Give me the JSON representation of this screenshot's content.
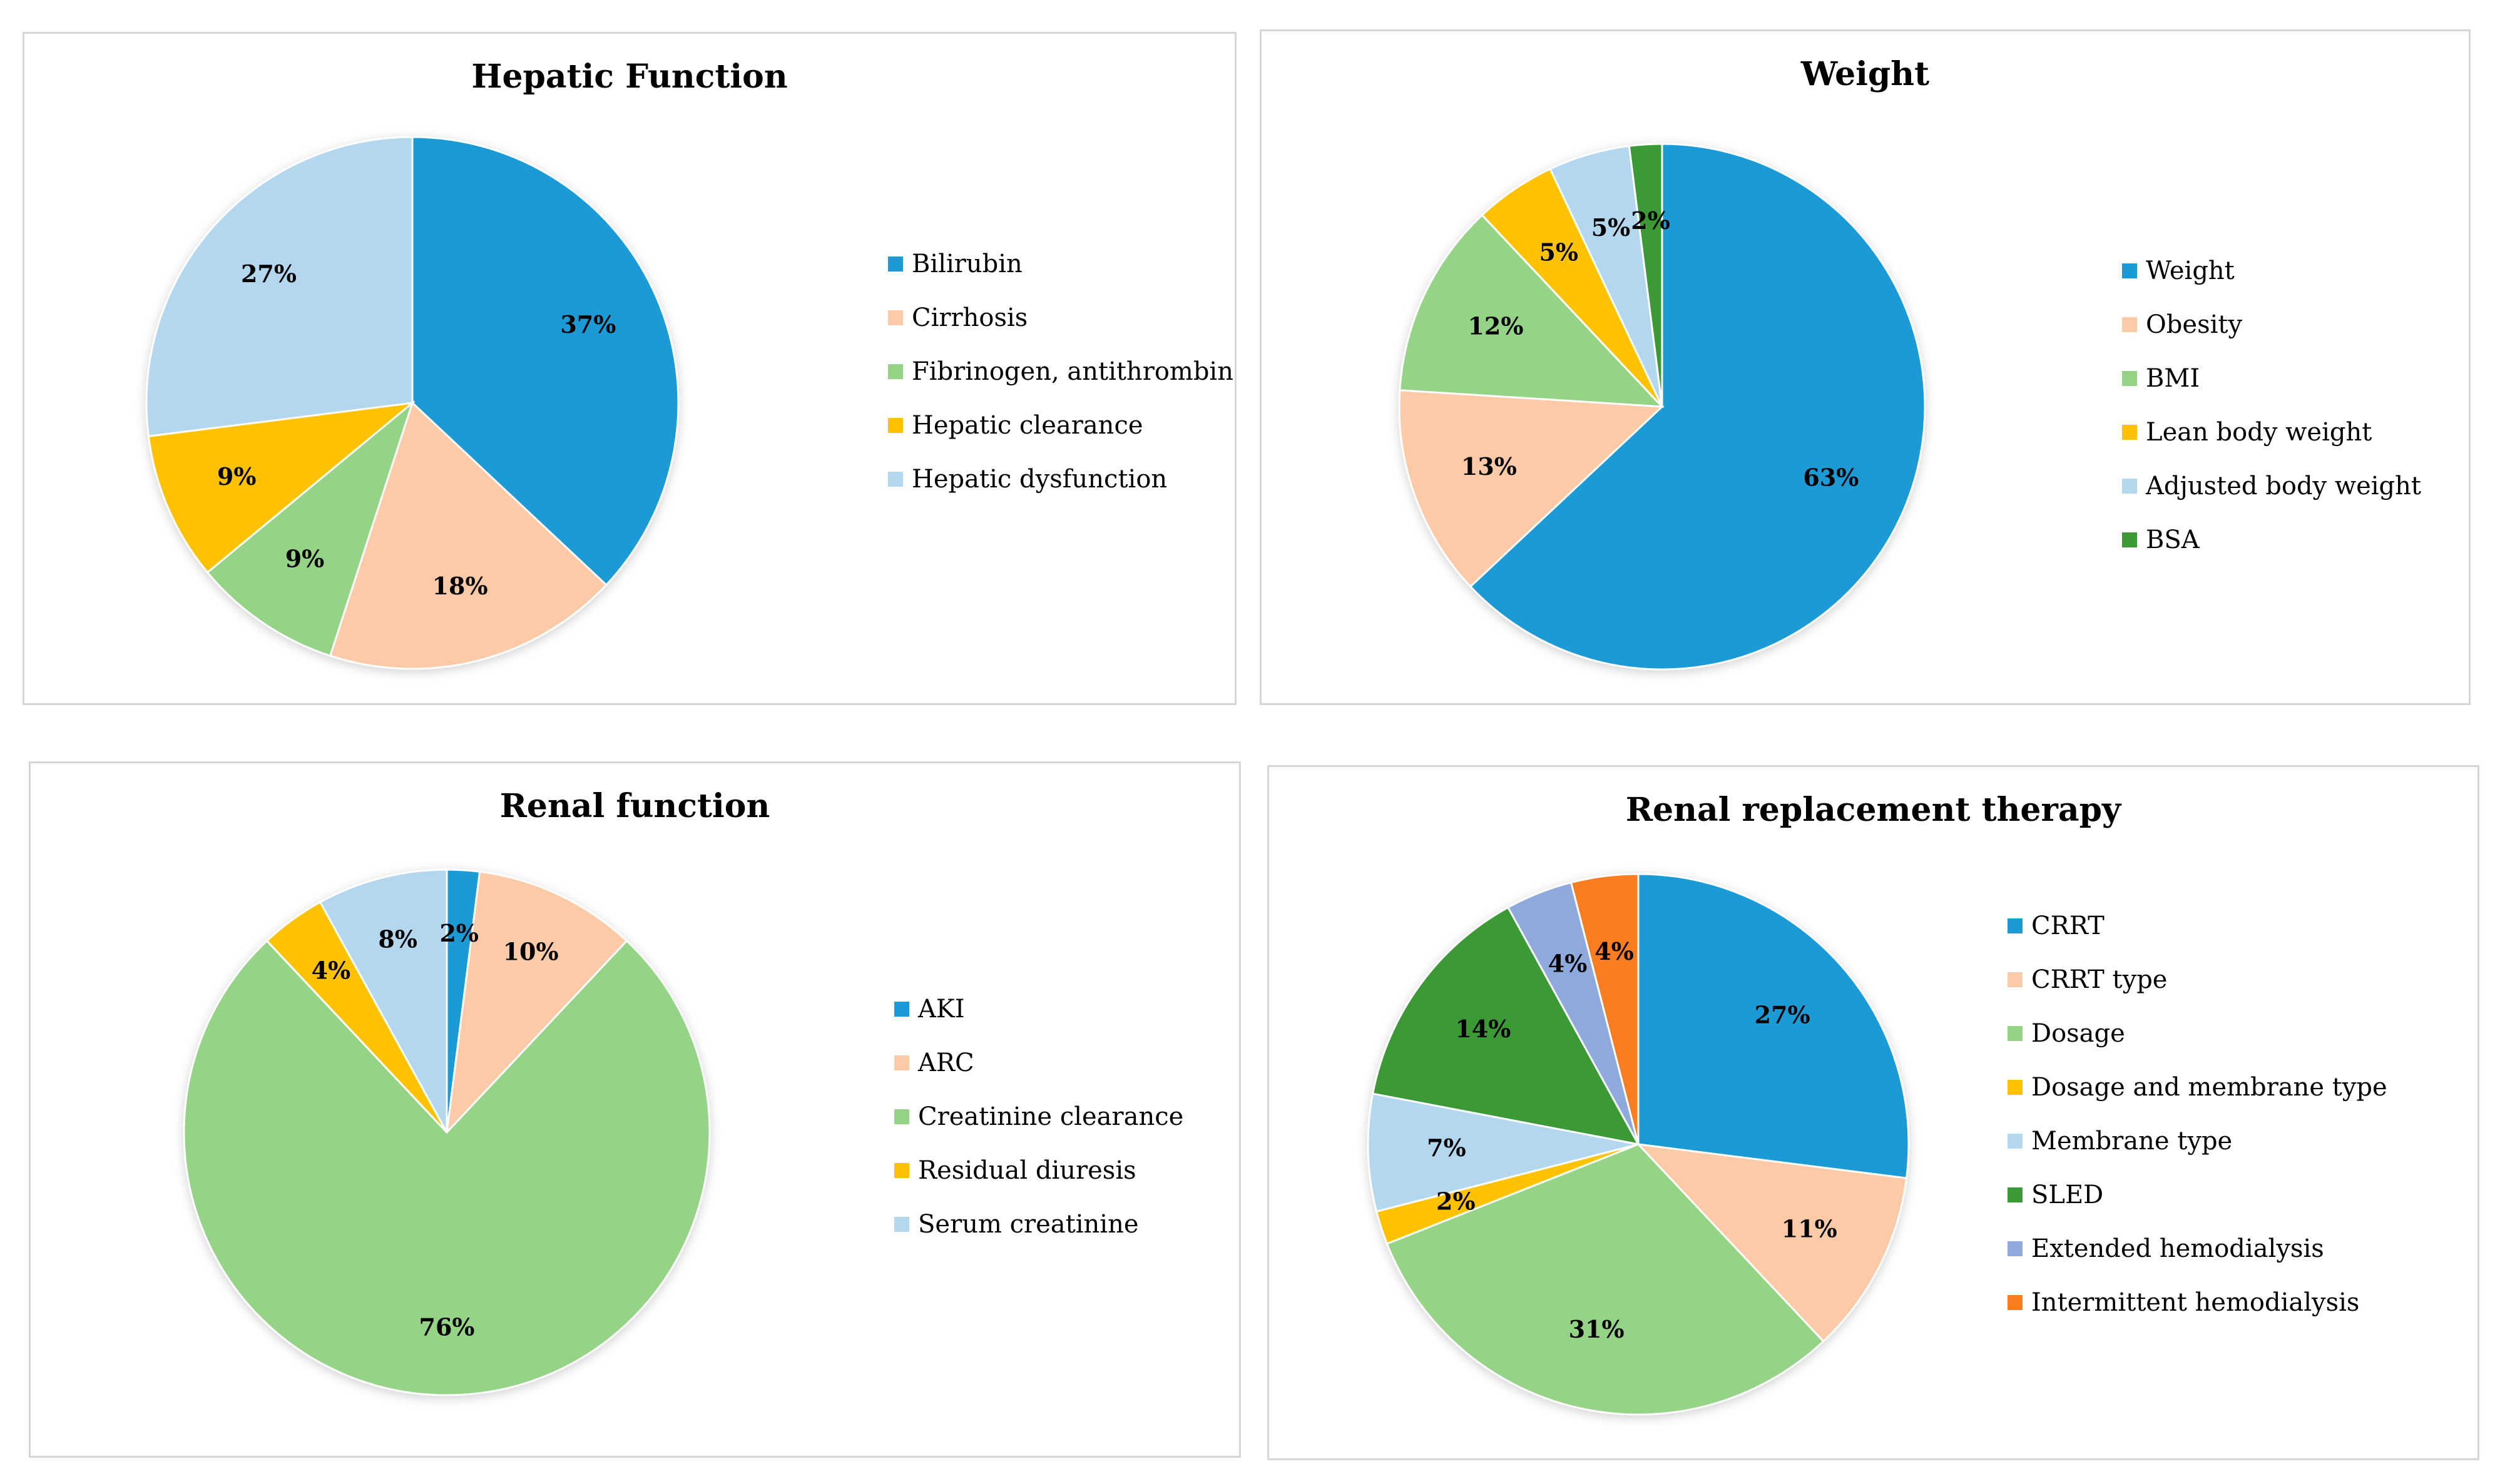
{
  "charts": [
    {
      "title": "Hepatic Function",
      "chart_data": {
        "type": "pie",
        "title": "Hepatic Function",
        "labels": [
          "Bilirubin",
          "Cirrhosis",
          "Fibrinogen, antithrombin",
          "Hepatic clearance",
          "Hepatic dysfunction"
        ],
        "values": [
          37,
          18,
          9,
          9,
          27
        ],
        "value_labels": [
          "37%",
          "18%",
          "9%",
          "9%",
          "27%"
        ],
        "colors": [
          "#1a9ad6",
          "#fdcaa8",
          "#95d387",
          "#fec200",
          "#b3d7ef"
        ],
        "legend": "right"
      }
    },
    {
      "title": "Weight",
      "chart_data": {
        "type": "pie",
        "title": "Weight",
        "labels": [
          "Weight",
          "Obesity",
          "BMI",
          "Lean body weight",
          "Adjusted body weight",
          "BSA"
        ],
        "values": [
          63,
          13,
          12,
          5,
          5,
          2
        ],
        "value_labels": [
          "63%",
          "13%",
          "12%",
          "5%",
          "5%",
          "2%"
        ],
        "colors": [
          "#1a9ad6",
          "#fdcaa8",
          "#95d387",
          "#fec200",
          "#b3d7ef",
          "#3b9a35"
        ],
        "legend": "right"
      }
    },
    {
      "title": "Renal function",
      "chart_data": {
        "type": "pie",
        "title": "Renal function",
        "labels": [
          "AKI",
          "ARC",
          "Creatinine clearance",
          "Residual diuresis",
          "Serum creatinine"
        ],
        "values": [
          2,
          10,
          76,
          4,
          8
        ],
        "value_labels": [
          "2%",
          "10%",
          "76%",
          "4%",
          "8%"
        ],
        "colors": [
          "#1a9ad6",
          "#fdcaa8",
          "#95d387",
          "#fec200",
          "#b3d7ef"
        ],
        "legend": "right"
      }
    },
    {
      "title": "Renal replacement therapy",
      "chart_data": {
        "type": "pie",
        "title": "Renal replacement therapy",
        "labels": [
          "CRRT",
          "CRRT type",
          "Dosage",
          "Dosage and membrane type",
          "Membrane type",
          "SLED",
          "Extended hemodialysis",
          "Intermittent hemodialysis"
        ],
        "values": [
          27,
          11,
          31,
          2,
          7,
          14,
          4,
          4
        ],
        "value_labels": [
          "27%",
          "11%",
          "31%",
          "2%",
          "7%",
          "14%",
          "4%",
          "4%"
        ],
        "colors": [
          "#1a9ad6",
          "#fdcaa8",
          "#95d387",
          "#fec200",
          "#b3d7ef",
          "#3b9a35",
          "#8ea9db",
          "#fb7d22"
        ],
        "legend": "right"
      }
    }
  ]
}
